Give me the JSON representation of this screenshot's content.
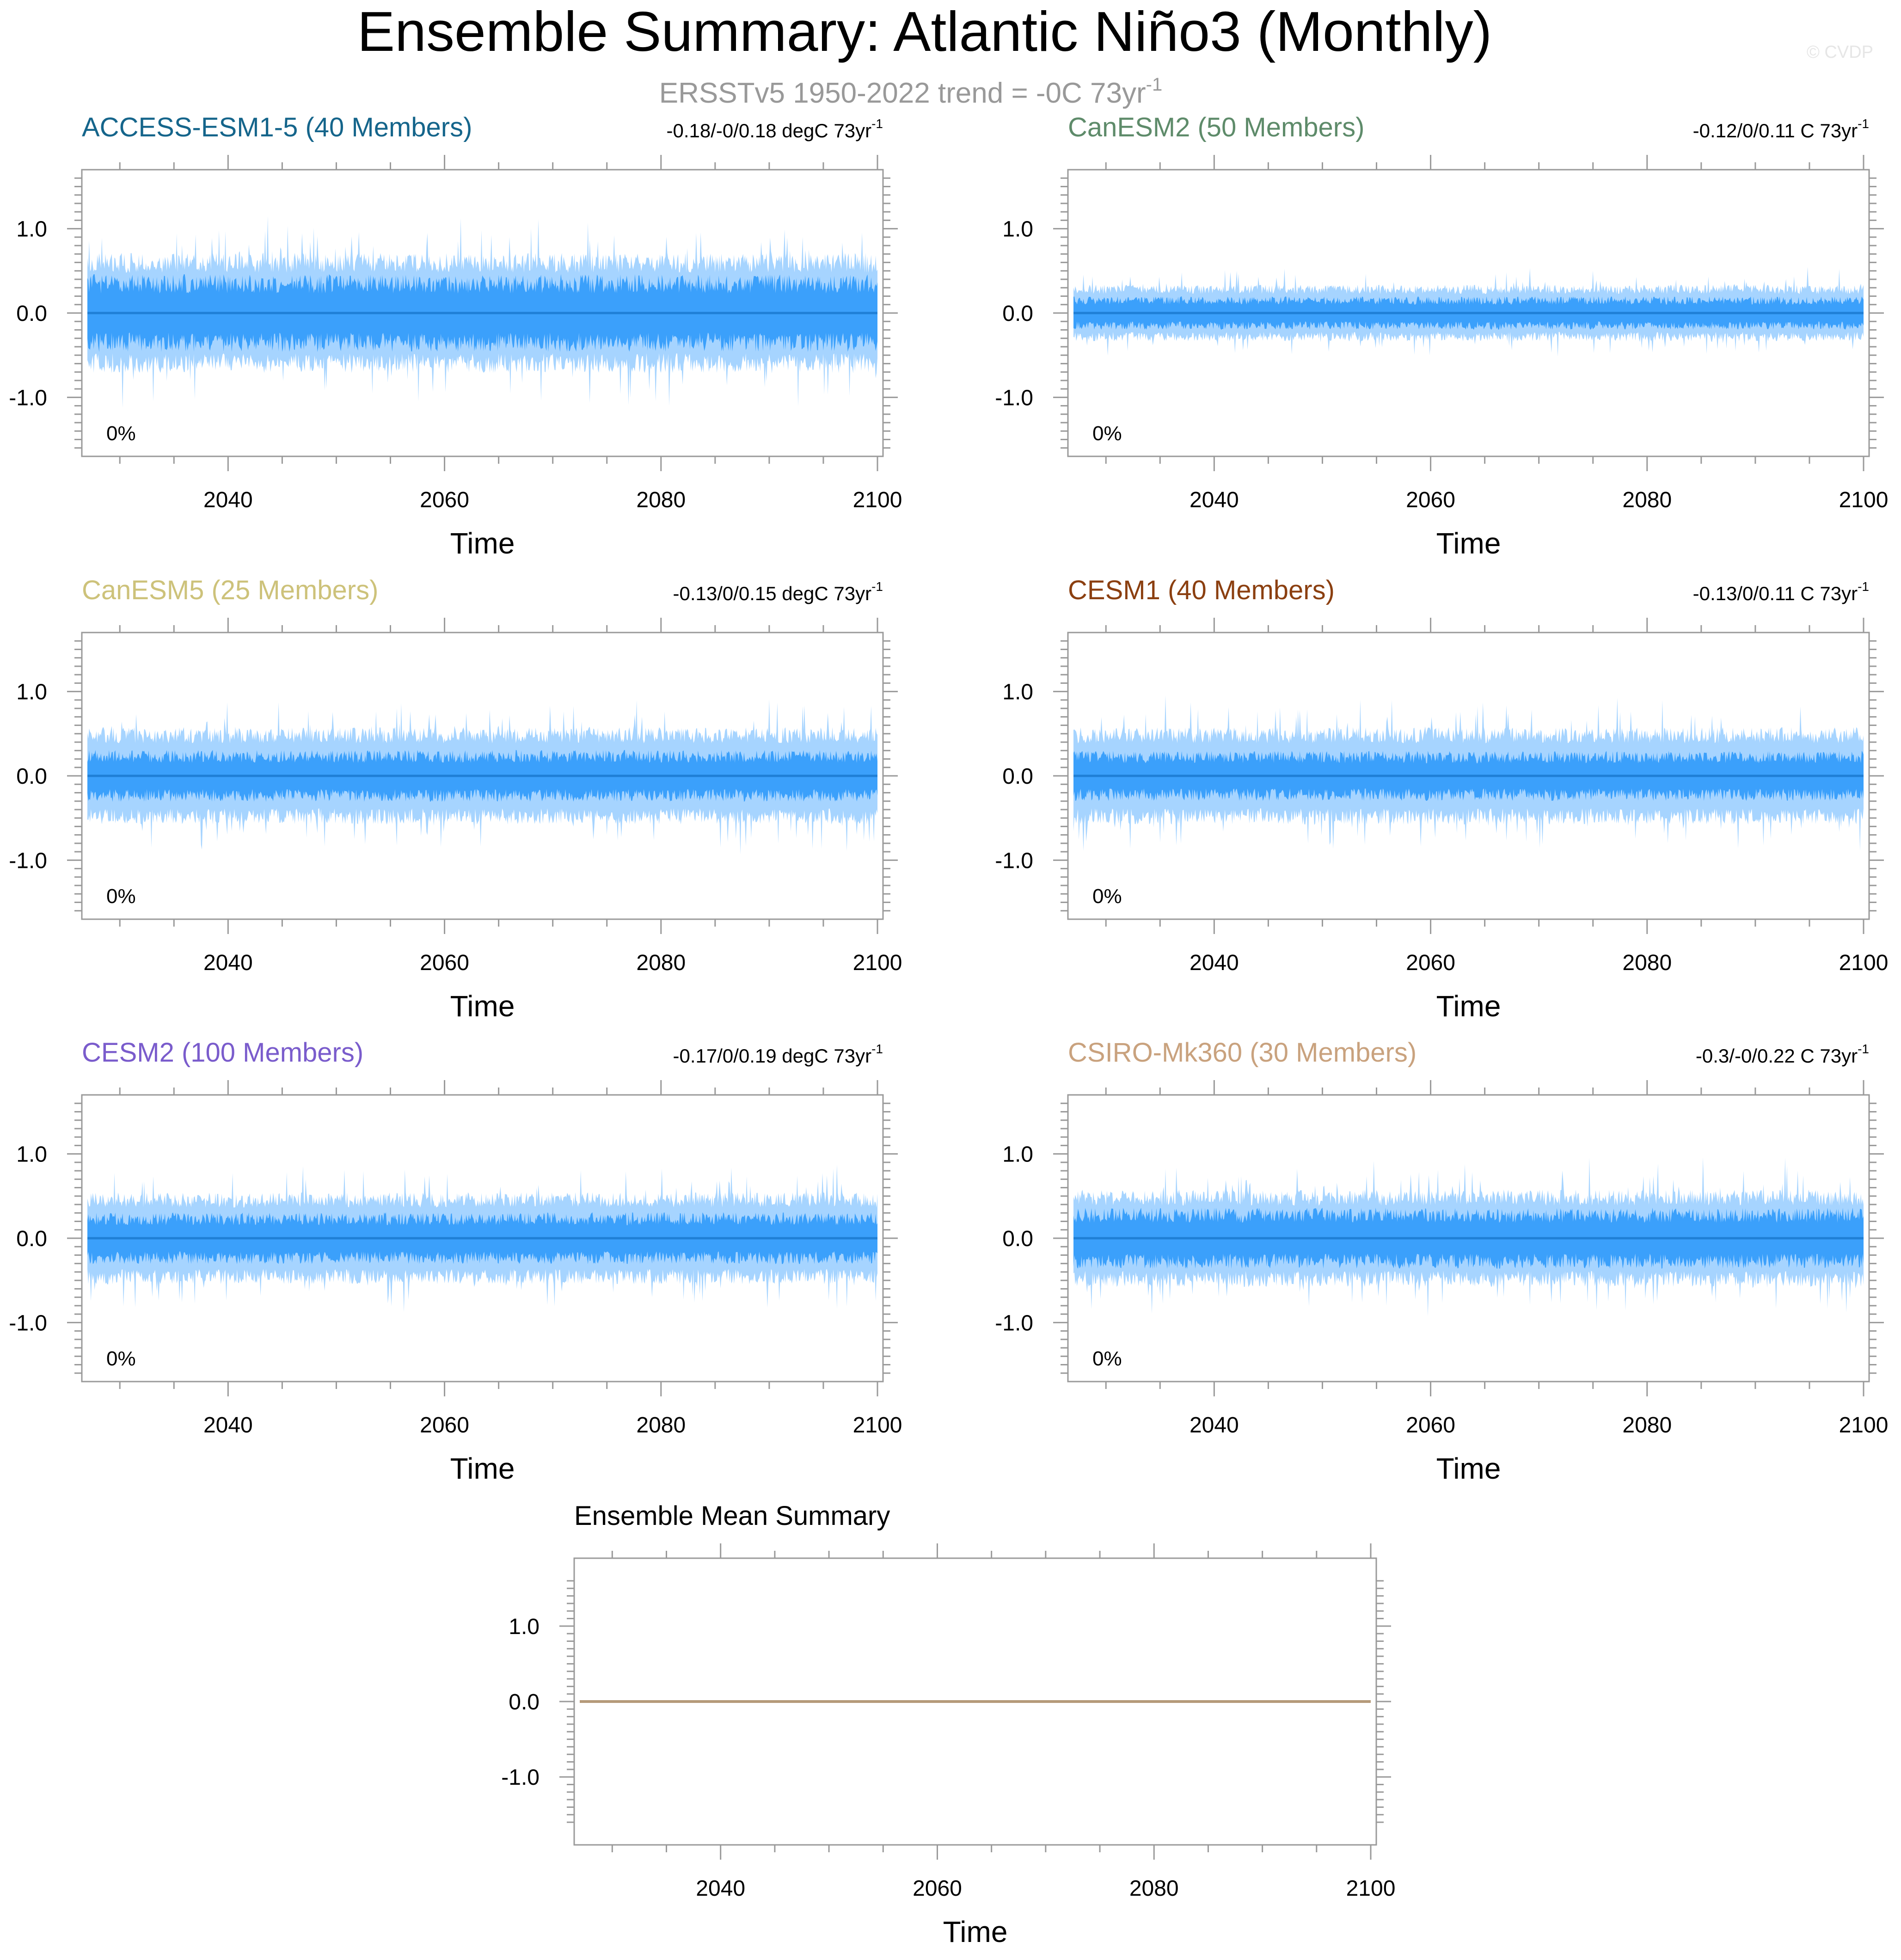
{
  "figure": {
    "title": "Ensemble Summary: Atlantic Niño3 (Monthly)",
    "subtitle": "ERSSTv5 1950-2022 trend = -0C 73yr",
    "subtitle_exp": "-1",
    "watermark": "© CVDP"
  },
  "colors": {
    "band_outer": "#a6d4ff",
    "band_inner": "#3ba0fb",
    "mean_line": "#1f7fd6",
    "ensemble_mean_line": "#b59a7a",
    "frame": "#9a9a9a"
  },
  "chart_data": [
    {
      "type": "area",
      "title": "ACCESS-ESM1-5 (40 Members)",
      "title_color": "#15658b",
      "trend_label": "-0.18/-0/0.18 degC 73yr",
      "trend_exp": "-1",
      "percent_label": "0%",
      "xlabel": "Time",
      "x_range": [
        2027,
        2100
      ],
      "ylim": [
        -1.7,
        1.7
      ],
      "x_ticks": [
        2040,
        2060,
        2080,
        2100
      ],
      "y_ticks": [
        1.0,
        0.0,
        -1.0
      ],
      "y_tick_labels": [
        "1.0",
        "0.0",
        "-1.0"
      ],
      "mean": 0.0,
      "envelope_outer_max_typical": 0.68,
      "envelope_inner_max_typical": 0.42,
      "series": [
        {
          "name": "Ensemble Mean",
          "values": [
            0.0,
            0.0
          ]
        }
      ]
    },
    {
      "type": "area",
      "title": "CanESM2 (50 Members)",
      "title_color": "#5e8b6a",
      "trend_label": "-0.12/0/0.11 C 73yr",
      "trend_exp": "-1",
      "percent_label": "0%",
      "xlabel": "Time",
      "x_range": [
        2027,
        2100
      ],
      "ylim": [
        -1.7,
        1.7
      ],
      "x_ticks": [
        2040,
        2060,
        2080,
        2100
      ],
      "y_ticks": [
        1.0,
        0.0,
        -1.0
      ],
      "y_tick_labels": [
        "1.0",
        "0.0",
        "-1.0"
      ],
      "mean": 0.0,
      "envelope_outer_max_typical": 0.32,
      "envelope_inner_max_typical": 0.18,
      "series": [
        {
          "name": "Ensemble Mean",
          "values": [
            0.0,
            0.0
          ]
        }
      ]
    },
    {
      "type": "area",
      "title": "CanESM5 (25 Members)",
      "title_color": "#cdc27a",
      "trend_label": "-0.13/0/0.15 degC 73yr",
      "trend_exp": "-1",
      "percent_label": "0%",
      "xlabel": "Time",
      "x_range": [
        2027,
        2100
      ],
      "ylim": [
        -1.7,
        1.7
      ],
      "x_ticks": [
        2040,
        2060,
        2080,
        2100
      ],
      "y_ticks": [
        1.0,
        0.0,
        -1.0
      ],
      "y_tick_labels": [
        "1.0",
        "0.0",
        "-1.0"
      ],
      "mean": 0.0,
      "envelope_outer_max_typical": 0.55,
      "envelope_inner_max_typical": 0.28,
      "series": [
        {
          "name": "Ensemble Mean",
          "values": [
            0.0,
            0.0
          ]
        }
      ]
    },
    {
      "type": "area",
      "title": "CESM1 (40 Members)",
      "title_color": "#8b3f10",
      "trend_label": "-0.13/0/0.11 C 73yr",
      "trend_exp": "-1",
      "percent_label": "0%",
      "xlabel": "Time",
      "x_range": [
        2027,
        2100
      ],
      "ylim": [
        -1.7,
        1.7
      ],
      "x_ticks": [
        2040,
        2060,
        2080,
        2100
      ],
      "y_ticks": [
        1.0,
        0.0,
        -1.0
      ],
      "y_tick_labels": [
        "1.0",
        "0.0",
        "-1.0"
      ],
      "mean": 0.0,
      "envelope_outer_max_typical": 0.55,
      "envelope_inner_max_typical": 0.27,
      "series": [
        {
          "name": "Ensemble Mean",
          "values": [
            0.0,
            0.0
          ]
        }
      ]
    },
    {
      "type": "area",
      "title": "CESM2 (100 Members)",
      "title_color": "#7a5ccc",
      "trend_label": "-0.17/0/0.19 degC 73yr",
      "trend_exp": "-1",
      "percent_label": "0%",
      "xlabel": "Time",
      "x_range": [
        2027,
        2100
      ],
      "ylim": [
        -1.7,
        1.7
      ],
      "x_ticks": [
        2040,
        2060,
        2080,
        2100
      ],
      "y_ticks": [
        1.0,
        0.0,
        -1.0
      ],
      "y_tick_labels": [
        "1.0",
        "0.0",
        "-1.0"
      ],
      "mean": 0.0,
      "envelope_outer_max_typical": 0.52,
      "envelope_inner_max_typical": 0.28,
      "series": [
        {
          "name": "Ensemble Mean",
          "values": [
            0.0,
            0.0
          ]
        }
      ]
    },
    {
      "type": "area",
      "title": "CSIRO-Mk360 (30 Members)",
      "title_color": "#c9a27e",
      "trend_label": "-0.3/-0/0.22 C 73yr",
      "trend_exp": "-1",
      "percent_label": "0%",
      "xlabel": "Time",
      "x_range": [
        2027,
        2100
      ],
      "ylim": [
        -1.7,
        1.7
      ],
      "x_ticks": [
        2040,
        2060,
        2080,
        2100
      ],
      "y_ticks": [
        1.0,
        0.0,
        -1.0
      ],
      "y_tick_labels": [
        "1.0",
        "0.0",
        "-1.0"
      ],
      "mean": 0.0,
      "envelope_outer_max_typical": 0.55,
      "envelope_inner_max_typical": 0.33,
      "series": [
        {
          "name": "Ensemble Mean",
          "values": [
            0.0,
            0.0
          ]
        }
      ]
    },
    {
      "type": "line",
      "title": "Ensemble Mean Summary",
      "title_color": "#000000",
      "xlabel": "Time",
      "x_range": [
        2027,
        2100
      ],
      "ylim": [
        -1.9,
        1.9
      ],
      "x_ticks": [
        2040,
        2060,
        2080,
        2100
      ],
      "y_ticks": [
        1.0,
        0.0,
        -1.0
      ],
      "y_tick_labels": [
        "1.0",
        "0.0",
        "-1.0"
      ],
      "series": [
        {
          "values": [
            0.0,
            0.0
          ]
        }
      ]
    }
  ]
}
